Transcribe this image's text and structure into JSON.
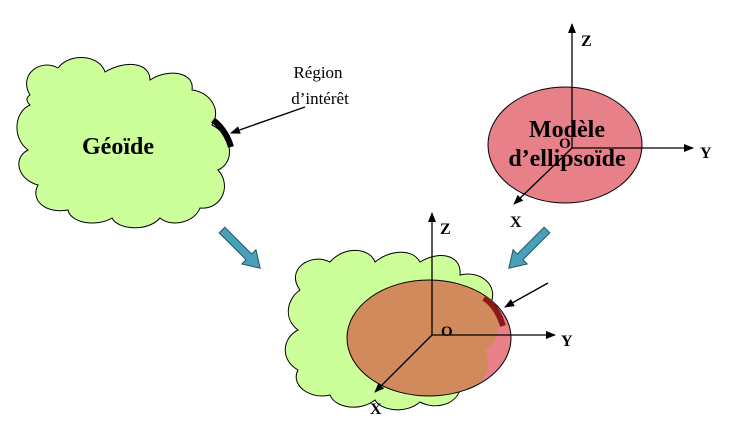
{
  "geoid": {
    "label": "Géoïde",
    "fill": "#ccff99"
  },
  "region": {
    "line1": "Région",
    "line2": "d’intérêt"
  },
  "ellipsoid_model": {
    "line1": "Modèle",
    "line2": "d’ellipsoïde",
    "fill": "#e8808a",
    "axes": {
      "z": "Z",
      "y": "Y",
      "x": "X",
      "origin": "O"
    }
  },
  "combined": {
    "ellipse_fill": "#d08a5c",
    "overlap_fill": "#e8808a",
    "axes": {
      "z": "Z",
      "y": "Y",
      "x": "X",
      "origin": "O"
    }
  },
  "colors": {
    "arrow_fill": "#4aa0b8",
    "region_mark": "#000000",
    "region_mark_combined": "#8a1a1a"
  }
}
